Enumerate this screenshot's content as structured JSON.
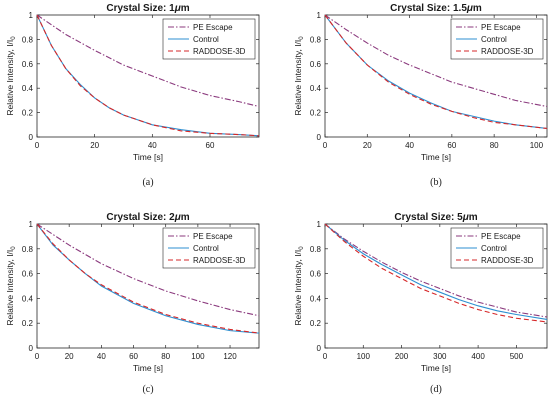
{
  "chart_data": [
    {
      "type": "line",
      "caption": "(a)",
      "title_prefix": "Crystal Size: 1",
      "title_unit": "m",
      "xlabel": "Time [s]",
      "ylabel_main": "Relative Intensity, I/I",
      "ylabel_sub": "0",
      "xlim": [
        0,
        77
      ],
      "ylim": [
        0,
        1
      ],
      "xticks": [
        0,
        20,
        40,
        60
      ],
      "yticks": [
        0,
        0.2,
        0.4,
        0.6,
        0.8,
        1
      ],
      "legend_position": "top-right",
      "series": [
        {
          "name": "PE Escape",
          "color": "#8b3a7e",
          "dash": "dashdot",
          "points": [
            [
              0,
              1
            ],
            [
              10,
              0.84
            ],
            [
              20,
              0.71
            ],
            [
              30,
              0.59
            ],
            [
              40,
              0.5
            ],
            [
              50,
              0.41
            ],
            [
              60,
              0.34
            ],
            [
              70,
              0.29
            ],
            [
              77,
              0.25
            ]
          ]
        },
        {
          "name": "Control",
          "color": "#2e8fd0",
          "dash": "solid",
          "points": [
            [
              0,
              1
            ],
            [
              5,
              0.75
            ],
            [
              10,
              0.56
            ],
            [
              15,
              0.43
            ],
            [
              20,
              0.32
            ],
            [
              25,
              0.24
            ],
            [
              30,
              0.18
            ],
            [
              40,
              0.1
            ],
            [
              50,
              0.06
            ],
            [
              60,
              0.03
            ],
            [
              70,
              0.02
            ],
            [
              77,
              0.01
            ]
          ]
        },
        {
          "name": "RADDOSE-3D",
          "color": "#d62728",
          "dash": "dashed",
          "points": [
            [
              0,
              1
            ],
            [
              5,
              0.75
            ],
            [
              10,
              0.56
            ],
            [
              15,
              0.42
            ],
            [
              20,
              0.32
            ],
            [
              25,
              0.24
            ],
            [
              30,
              0.18
            ],
            [
              40,
              0.1
            ],
            [
              50,
              0.05
            ],
            [
              60,
              0.03
            ],
            [
              70,
              0.02
            ],
            [
              77,
              0.01
            ]
          ]
        }
      ]
    },
    {
      "type": "line",
      "caption": "(b)",
      "title_prefix": "Crystal Size: 1.5",
      "title_unit": "m",
      "xlabel": "Time [s]",
      "ylabel_main": "Relative Intensity, I/I",
      "ylabel_sub": "0",
      "xlim": [
        0,
        105
      ],
      "ylim": [
        0,
        1
      ],
      "xticks": [
        0,
        20,
        40,
        60,
        80,
        100
      ],
      "yticks": [
        0,
        0.2,
        0.4,
        0.6,
        0.8,
        1
      ],
      "legend_position": "top-right",
      "series": [
        {
          "name": "PE Escape",
          "color": "#8b3a7e",
          "dash": "dashdot",
          "points": [
            [
              0,
              1
            ],
            [
              10,
              0.88
            ],
            [
              20,
              0.77
            ],
            [
              30,
              0.67
            ],
            [
              40,
              0.59
            ],
            [
              50,
              0.52
            ],
            [
              60,
              0.45
            ],
            [
              70,
              0.4
            ],
            [
              80,
              0.35
            ],
            [
              90,
              0.3
            ],
            [
              105,
              0.25
            ]
          ]
        },
        {
          "name": "Control",
          "color": "#2e8fd0",
          "dash": "solid",
          "points": [
            [
              0,
              1
            ],
            [
              10,
              0.77
            ],
            [
              20,
              0.59
            ],
            [
              30,
              0.46
            ],
            [
              40,
              0.36
            ],
            [
              50,
              0.28
            ],
            [
              60,
              0.21
            ],
            [
              70,
              0.17
            ],
            [
              80,
              0.13
            ],
            [
              90,
              0.1
            ],
            [
              105,
              0.07
            ]
          ]
        },
        {
          "name": "RADDOSE-3D",
          "color": "#d62728",
          "dash": "dashed",
          "points": [
            [
              0,
              1
            ],
            [
              10,
              0.77
            ],
            [
              20,
              0.59
            ],
            [
              30,
              0.45
            ],
            [
              40,
              0.35
            ],
            [
              50,
              0.27
            ],
            [
              60,
              0.21
            ],
            [
              70,
              0.16
            ],
            [
              80,
              0.12
            ],
            [
              90,
              0.1
            ],
            [
              105,
              0.07
            ]
          ]
        }
      ]
    },
    {
      "type": "line",
      "caption": "(c)",
      "title_prefix": "Crystal Size: 2",
      "title_unit": "m",
      "xlabel": "Time [s]",
      "ylabel_main": "Relative Intensity, I/I",
      "ylabel_sub": "0",
      "xlim": [
        0,
        138
      ],
      "ylim": [
        0,
        1
      ],
      "xticks": [
        0,
        20,
        40,
        60,
        80,
        100,
        120
      ],
      "yticks": [
        0,
        0.2,
        0.4,
        0.6,
        0.8,
        1
      ],
      "legend_position": "top-right",
      "series": [
        {
          "name": "PE Escape",
          "color": "#8b3a7e",
          "dash": "dashdot",
          "points": [
            [
              0,
              1
            ],
            [
              20,
              0.83
            ],
            [
              40,
              0.68
            ],
            [
              60,
              0.56
            ],
            [
              80,
              0.46
            ],
            [
              100,
              0.38
            ],
            [
              120,
              0.31
            ],
            [
              138,
              0.26
            ]
          ]
        },
        {
          "name": "Control",
          "color": "#2e8fd0",
          "dash": "solid",
          "points": [
            [
              0,
              1
            ],
            [
              10,
              0.83
            ],
            [
              20,
              0.71
            ],
            [
              30,
              0.6
            ],
            [
              40,
              0.5
            ],
            [
              60,
              0.36
            ],
            [
              80,
              0.26
            ],
            [
              100,
              0.19
            ],
            [
              120,
              0.14
            ],
            [
              138,
              0.12
            ]
          ]
        },
        {
          "name": "RADDOSE-3D",
          "color": "#d62728",
          "dash": "dashed",
          "points": [
            [
              0,
              1
            ],
            [
              10,
              0.84
            ],
            [
              20,
              0.71
            ],
            [
              30,
              0.6
            ],
            [
              40,
              0.51
            ],
            [
              60,
              0.37
            ],
            [
              80,
              0.27
            ],
            [
              100,
              0.2
            ],
            [
              120,
              0.15
            ],
            [
              138,
              0.12
            ]
          ]
        }
      ]
    },
    {
      "type": "line",
      "caption": "(d)",
      "title_prefix": "Crystal Size: 5",
      "title_unit": "m",
      "xlabel": "Time [s]",
      "ylabel_main": "Relative Intensity, I/I",
      "ylabel_sub": "0",
      "xlim": [
        0,
        580
      ],
      "ylim": [
        0,
        1
      ],
      "xticks": [
        0,
        100,
        200,
        300,
        400,
        500
      ],
      "yticks": [
        0,
        0.2,
        0.4,
        0.6,
        0.8,
        1
      ],
      "legend_position": "top-right",
      "series": [
        {
          "name": "PE Escape",
          "color": "#8b3a7e",
          "dash": "dashdot",
          "points": [
            [
              0,
              1
            ],
            [
              50,
              0.88
            ],
            [
              100,
              0.78
            ],
            [
              150,
              0.69
            ],
            [
              200,
              0.61
            ],
            [
              250,
              0.54
            ],
            [
              300,
              0.48
            ],
            [
              350,
              0.42
            ],
            [
              400,
              0.37
            ],
            [
              450,
              0.33
            ],
            [
              500,
              0.29
            ],
            [
              580,
              0.25
            ]
          ]
        },
        {
          "name": "Control",
          "color": "#2e8fd0",
          "dash": "solid",
          "points": [
            [
              0,
              1
            ],
            [
              50,
              0.87
            ],
            [
              100,
              0.76
            ],
            [
              150,
              0.67
            ],
            [
              200,
              0.59
            ],
            [
              250,
              0.51
            ],
            [
              300,
              0.45
            ],
            [
              350,
              0.39
            ],
            [
              400,
              0.34
            ],
            [
              450,
              0.3
            ],
            [
              500,
              0.27
            ],
            [
              580,
              0.23
            ]
          ]
        },
        {
          "name": "RADDOSE-3D",
          "color": "#d62728",
          "dash": "dashed",
          "points": [
            [
              0,
              1
            ],
            [
              50,
              0.86
            ],
            [
              100,
              0.74
            ],
            [
              150,
              0.64
            ],
            [
              200,
              0.56
            ],
            [
              250,
              0.48
            ],
            [
              300,
              0.42
            ],
            [
              350,
              0.36
            ],
            [
              400,
              0.31
            ],
            [
              450,
              0.27
            ],
            [
              500,
              0.24
            ],
            [
              580,
              0.21
            ]
          ]
        }
      ]
    }
  ]
}
